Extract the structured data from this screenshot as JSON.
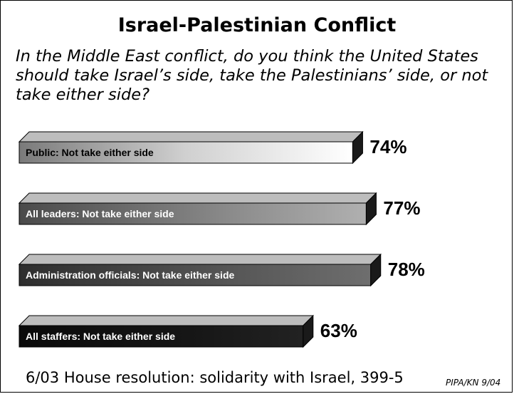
{
  "title": "Israel-Palestinian Conflict",
  "question": "In the Middle East conflict, do you think the United States should take Israel’s side, take the Palestinians’ side, or not take either side?",
  "footer_note": "6/03 House resolution: solidarity with Israel, 399-5",
  "source": "PIPA/KN 9/04",
  "chart_data": {
    "type": "bar",
    "orientation": "horizontal",
    "title": "Israel-Palestinian Conflict",
    "categories": [
      "Public:  Not take either side",
      "All leaders: Not take either side",
      "Administration officials: Not take either side",
      "All staffers: Not take either side"
    ],
    "values": [
      74,
      77,
      78,
      63
    ],
    "value_labels": [
      "74%",
      "77%",
      "78%",
      "63%"
    ],
    "unit": "%",
    "bar_colors": [
      "#d8d8d8",
      "#8c8c8c",
      "#565656",
      "#141414"
    ],
    "label_colors": [
      "#000000",
      "#ffffff",
      "#ffffff",
      "#ffffff"
    ],
    "grid": false,
    "legend": "none"
  }
}
